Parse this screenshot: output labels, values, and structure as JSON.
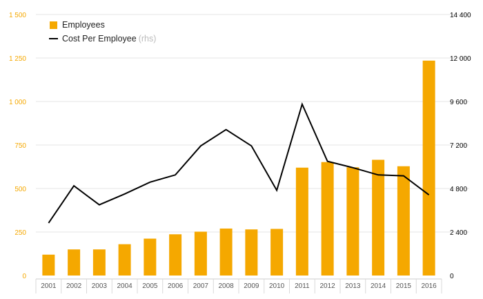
{
  "chart_data": {
    "type": "bar",
    "categories": [
      "2001",
      "2002",
      "2003",
      "2004",
      "2005",
      "2006",
      "2007",
      "2008",
      "2009",
      "2010",
      "2011",
      "2012",
      "2013",
      "2014",
      "2015",
      "2016"
    ],
    "series": [
      {
        "name": "Employees",
        "type": "bar",
        "axis": "left",
        "color": "#F5A800",
        "values": [
          120,
          150,
          150,
          180,
          212,
          237,
          252,
          270,
          265,
          268,
          620,
          652,
          622,
          665,
          628,
          1235
        ]
      },
      {
        "name": "Cost Per Employee",
        "legend_suffix": "(rhs)",
        "type": "line",
        "axis": "right",
        "color": "#000000",
        "values": [
          2900,
          4950,
          3900,
          4500,
          5150,
          5550,
          7150,
          8050,
          7150,
          4700,
          9450,
          6300,
          5950,
          5550,
          5500,
          4450
        ]
      }
    ],
    "y_left": {
      "ticks": [
        "0",
        "250",
        "500",
        "750",
        "1 000",
        "1 250",
        "1 500"
      ],
      "ylim": [
        0,
        1500
      ],
      "color": "#F5A800"
    },
    "y_right": {
      "ticks": [
        "0",
        "2 400",
        "4 800",
        "7 200",
        "9 600",
        "12 000",
        "14 400"
      ],
      "ylim": [
        0,
        14400
      ],
      "color": "#000000"
    },
    "grid": true,
    "legend_position": "top-left"
  }
}
